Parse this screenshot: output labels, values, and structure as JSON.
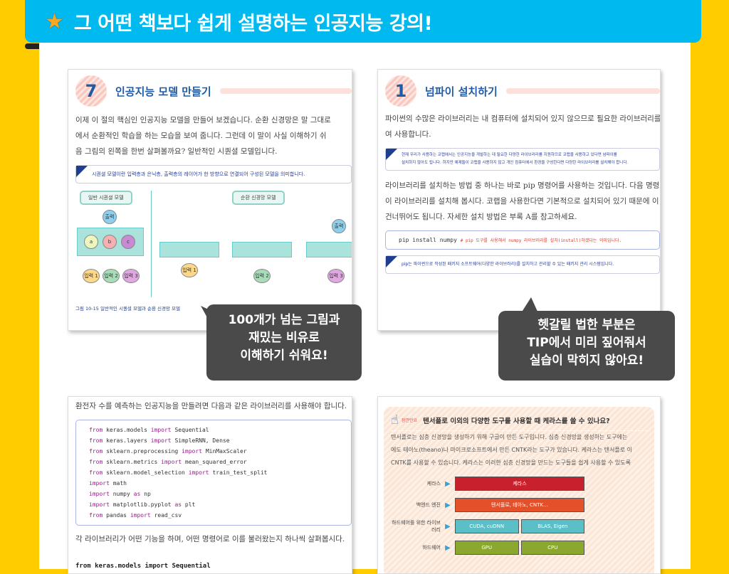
{
  "header": {
    "title": "그 어떤 책보다 쉽게 설명하는 인공지능 강의!",
    "icon": "star-icon",
    "color": "#00b9ef",
    "background": "#ffcc00"
  },
  "card1": {
    "number": "7",
    "title": "인공지능 모델 만들기",
    "paragraph": [
      "이제 이 절의 핵심인 인공지능 모델을 만들어 보겠습니다. 순환 신경망은 말 그대로",
      "에서 순환적인 학습을 하는 모습을 보여 줍니다. 그런데 이 말이 사실 이해하기 쉬",
      "음 그림의 왼쪽을 한번 살펴볼까요? 일반적인 시퀀셜 모델입니다."
    ],
    "tip": "시퀀셜 모델이란 입력층과 은닉층, 출력층의 레이어가 한 방향으로 연결되어 구성된 모델을 의미합니다.",
    "diagram": {
      "left_label": "일반 시퀀셜 모델",
      "right_label": "순환 신경망 모델",
      "output": "출력",
      "nodes": [
        "a",
        "b",
        "c"
      ],
      "inputs": [
        "입력 1",
        "입력 2",
        "입력 3"
      ],
      "caption": "그림 10-15 일반적인 시퀀셜 모델과 순환 신경망 모델"
    }
  },
  "card2": {
    "number": "1",
    "title": "넘파이 설치하기",
    "paragraph1": [
      "파이썬의 수많은 라이브러리는 내 컴퓨터에 설치되어 있지 않으므로 필요한 라이브러리를",
      "여 사용합니다."
    ],
    "tip1": [
      "현재 우리가 사용하는 코랩에서는 인공지능을 개발하는 데 필요한 다양한 라이브러리를 지원하므로 코랩을 사용하고 있다면 넘파이를",
      "설치하지 않아도 됩니다. 하지만 예제들이 코랩을 사용하지 않고 개인 컴퓨터에서 환경을 구성한다면 다양한 라이브러리를 설치해야 합니다."
    ],
    "paragraph2": [
      "라이브러리를 설치하는 방법 중 하나는 바로 pip 명령어를 사용하는 것입니다. 다음 명령으",
      "이 라이브러리를 설치해 봅시다. 코랩을 사용한다면 기본적으로 설치되어 있기 때문에 이",
      "건너뛰어도 됩니다. 자세한 설치 방법은 부록 A를 참고하세요."
    ],
    "code": "pip install numpy",
    "code_comment": "# pip 도구를 사용해서 numpy 라이브러리를 설치(install)하겠다는 의미입니다.",
    "tip2": "pip는 파이썬으로 작성된 패키지 소프트웨어(다양한 라이브러리)를 설치하고 관리할 수 있는 패키지 관리 시스템입니다."
  },
  "bubble_left": [
    "100개가 넘는 그림과",
    "재밌는 비유로",
    "이해하기 쉬워요!"
  ],
  "bubble_right": [
    "헷갈릴 법한 부분은",
    "TIP에서 미리 짚어줘서",
    "실습이 막히지 않아요!"
  ],
  "card3": {
    "intro": "환전자 수를 예측하는 인공지능을 만들려면 다음과 같은 라이브러리를 사용해야 합니다.",
    "code": [
      [
        "from",
        "keras.models",
        "import",
        "Sequential"
      ],
      [
        "from",
        "keras.layers",
        "import",
        "SimpleRNN, Dense"
      ],
      [
        "from",
        "sklearn.preprocessing",
        "import",
        "MinMaxScaler"
      ],
      [
        "from",
        "sklearn.metrics",
        "import",
        "mean_squared_error"
      ],
      [
        "from",
        "sklearn.model_selection",
        "import",
        "train_test_split"
      ],
      [
        "import",
        "math",
        "",
        ""
      ],
      [
        "import",
        "numpy",
        "as",
        "np"
      ],
      [
        "import",
        "matplotlib.pyplot",
        "as",
        "plt"
      ],
      [
        "from",
        "pandas",
        "import",
        "read_csv"
      ]
    ],
    "outro": "각 라이브러리가 어떤 기능을 하며, 어떤 명령어로 이를 불러왔는지 하나씩 살펴봅시다.",
    "bold_code": "from keras.models import Sequential"
  },
  "card4": {
    "mini_label": "잠깐만요",
    "question": "텐서플로 이외의 다양한 도구를 사용할 때 케라스를 쓸 수 있나요?",
    "paragraph": [
      "텐서플로는 심층 신경망을 생성하기 위해 구글이 만든 도구입니다. 심층 신경망을 생성하는 도구에는",
      "에도 테아노(theano)나 마이크로소프트에서 만든 CNTK라는 도구가 있습니다. 케라스는 텐서플로 이",
      "CNTK를 사용할 수 있습니다. 케라스는 이러한 심층 신경망을 만드는 도구들을 쉽게 사용할 수 있도록"
    ],
    "stack": [
      {
        "label": "케라스",
        "cells": [
          "케라스"
        ],
        "color": "#c8202c"
      },
      {
        "label": "백엔드 엔진",
        "cells": [
          "텐서플로, 테아노, CNTK…"
        ],
        "color": "#e4502a"
      },
      {
        "label": "하드웨어를 위한 라이브러리",
        "cells": [
          "CUDA, cuDNN",
          "BLAS, Eigen"
        ],
        "color": "#5bbfc8"
      },
      {
        "label": "하드웨어",
        "cells": [
          "GPU",
          "CPU"
        ],
        "color": "#8aa82e"
      }
    ]
  }
}
